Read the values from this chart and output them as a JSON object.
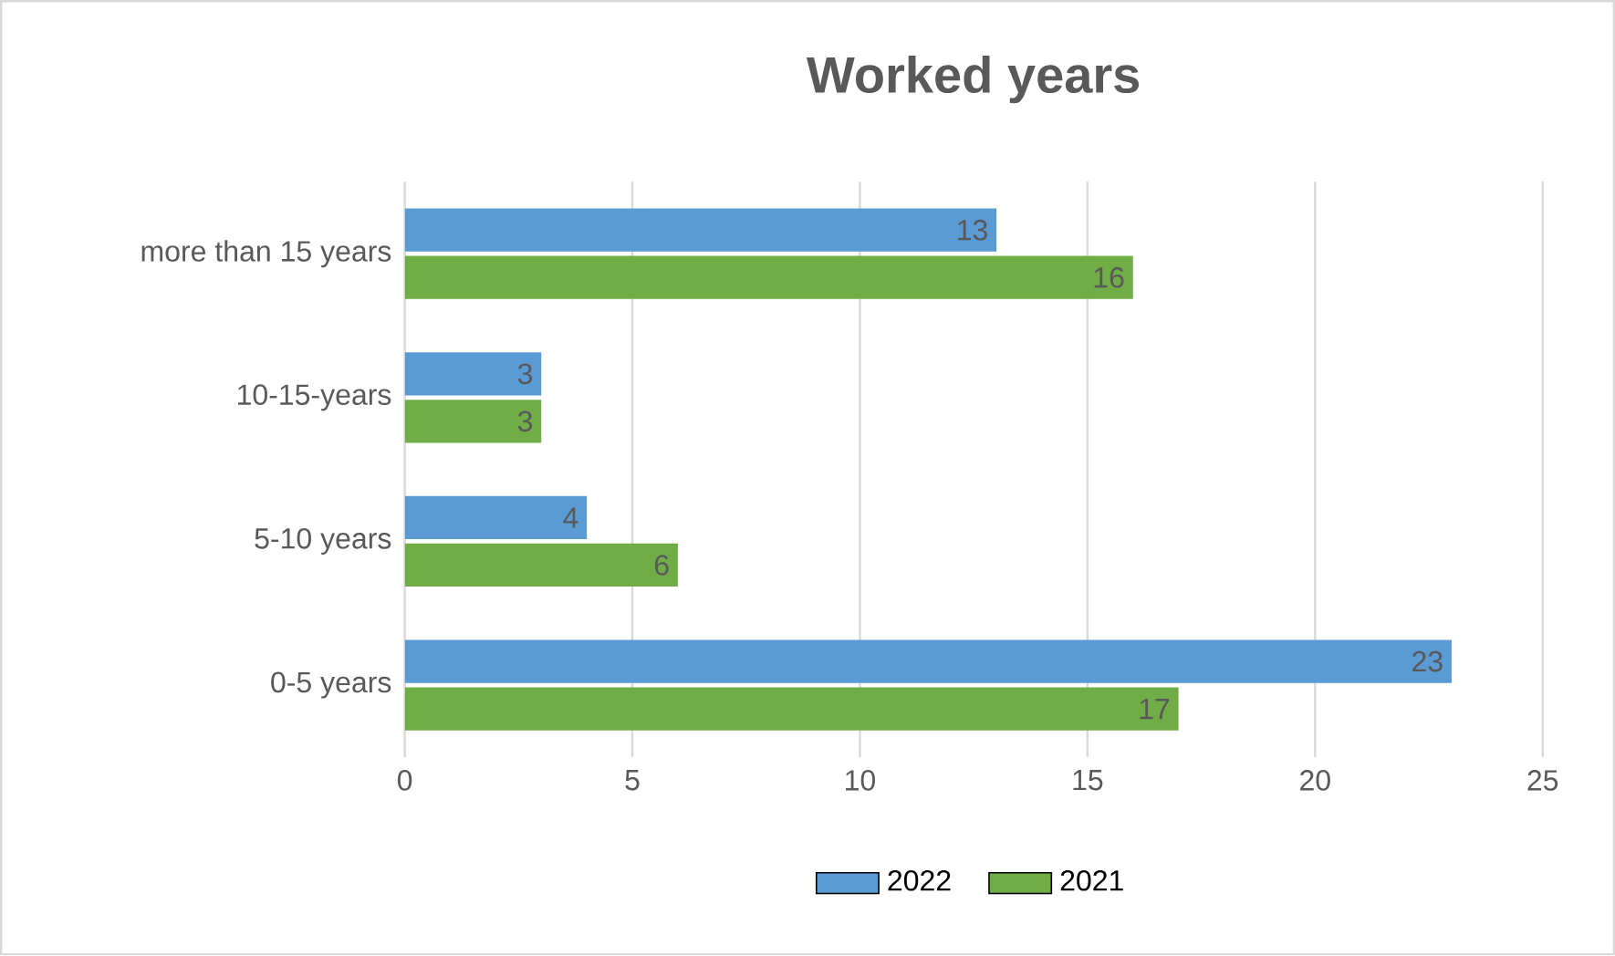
{
  "chart_data": {
    "type": "bar",
    "orientation": "horizontal",
    "title": "Worked years",
    "categories": [
      "more than 15 years",
      "10-15-years",
      "5-10 years",
      "0-5 years"
    ],
    "series": [
      {
        "name": "2022",
        "color": "#5b9bd5",
        "values": [
          13,
          3,
          4,
          23
        ]
      },
      {
        "name": "2021",
        "color": "#70ad47",
        "values": [
          16,
          3,
          6,
          17
        ]
      }
    ],
    "xlim": [
      0,
      25
    ],
    "xticks": [
      0,
      5,
      10,
      15,
      20,
      25
    ],
    "grid": "x",
    "legend": "bottom",
    "data_labels": true
  }
}
